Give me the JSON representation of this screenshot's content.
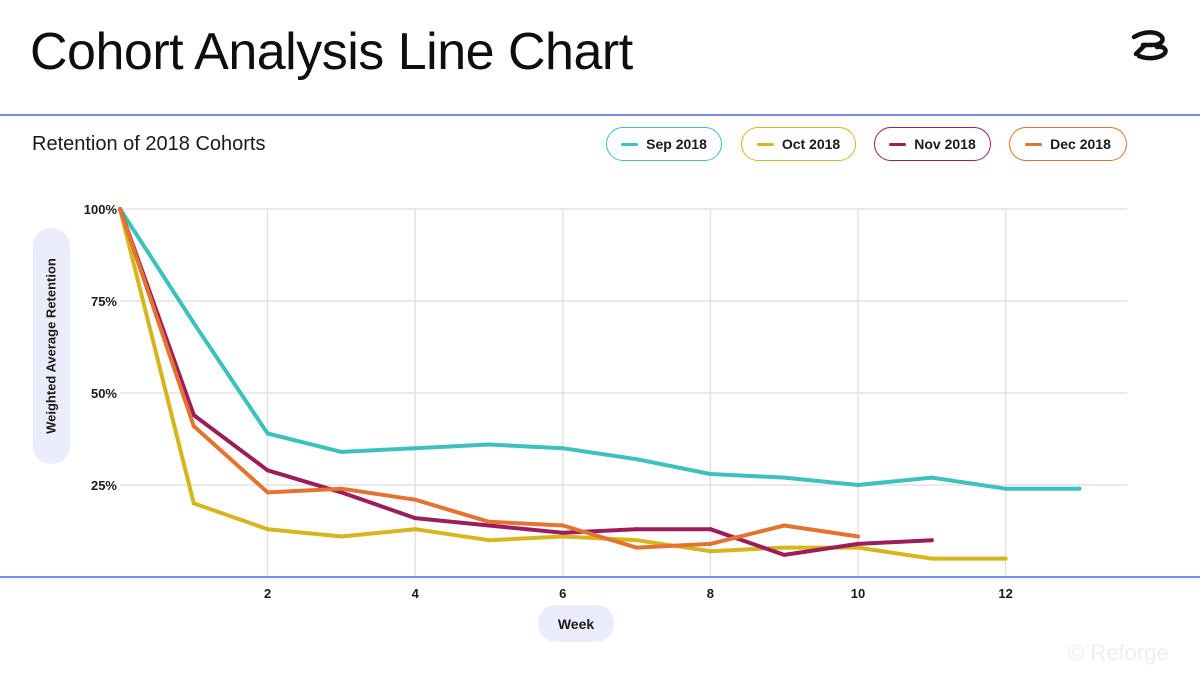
{
  "title": "Cohort Analysis Line Chart",
  "watermark": "© Reforge",
  "chart_data": {
    "type": "line",
    "title": "Retention of 2018 Cohorts",
    "xlabel": "Week",
    "ylabel": "Weighted Average Retention",
    "xlim": [
      0,
      13
    ],
    "ylim": [
      0,
      100
    ],
    "x_ticks": [
      2,
      4,
      6,
      8,
      10,
      12
    ],
    "y_ticks": [
      25,
      50,
      75,
      100
    ],
    "y_tick_labels": [
      "25%",
      "50%",
      "75%",
      "100%"
    ],
    "grid": true,
    "legend_position": "top-right",
    "series": [
      {
        "name": "Sep 2018",
        "color": "#3cc1bd",
        "x": [
          0,
          1,
          2,
          3,
          4,
          5,
          6,
          7,
          8,
          9,
          10,
          11,
          12,
          13
        ],
        "y": [
          100,
          69,
          39,
          34,
          35,
          36,
          35,
          32,
          28,
          27,
          25,
          27,
          24,
          24
        ]
      },
      {
        "name": "Oct 2018",
        "color": "#d6b51d",
        "x": [
          0,
          1,
          2,
          3,
          4,
          5,
          6,
          7,
          8,
          9,
          10,
          11,
          12
        ],
        "y": [
          100,
          20,
          13,
          11,
          13,
          10,
          11,
          10,
          7,
          8,
          8,
          5,
          5
        ]
      },
      {
        "name": "Nov 2018",
        "color": "#9c1d5b",
        "x": [
          0,
          1,
          2,
          3,
          4,
          5,
          6,
          7,
          8,
          9,
          10,
          11
        ],
        "y": [
          100,
          44,
          29,
          23,
          16,
          14,
          12,
          13,
          13,
          6,
          9,
          10
        ]
      },
      {
        "name": "Dec 2018",
        "color": "#e47230",
        "x": [
          0,
          1,
          2,
          3,
          4,
          5,
          6,
          7,
          8,
          9,
          10
        ],
        "y": [
          100,
          41,
          23,
          24,
          21,
          15,
          14,
          8,
          9,
          14,
          11
        ]
      }
    ]
  }
}
